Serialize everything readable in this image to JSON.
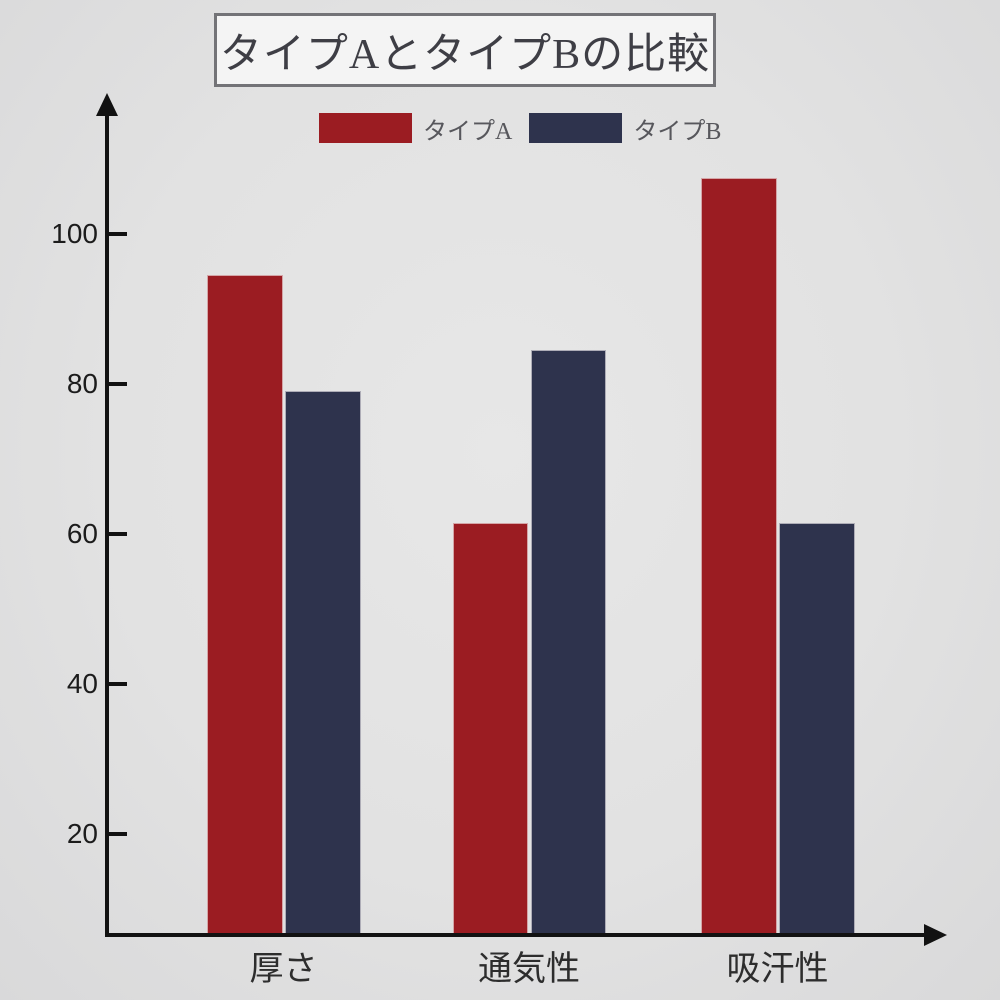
{
  "title": {
    "text": "タイプAとタイプBの比較"
  },
  "legend": {
    "items": [
      {
        "label": "タイプA",
        "color": "#9b1c22"
      },
      {
        "label": "タイプB",
        "color": "#2e334d"
      }
    ]
  },
  "chart_data": {
    "type": "bar",
    "title": "タイプAとタイプBの比較",
    "categories": [
      "厚さ",
      "通気性",
      "吸汗性"
    ],
    "series": [
      {
        "name": "タイプA",
        "color": "#9b1c22",
        "values": [
          94.5,
          61.5,
          107.5
        ]
      },
      {
        "name": "タイプB",
        "color": "#2e334d",
        "values": [
          79,
          84.5,
          61.5
        ]
      }
    ],
    "yticks": [
      20,
      40,
      60,
      80,
      100
    ],
    "ylim": [
      6.5,
      117
    ],
    "xlabel": "",
    "ylabel": "",
    "grid": false,
    "legend_position": "top",
    "axis_arrows": true
  },
  "colors": {
    "background": "#e2e2e2",
    "axis": "#121212",
    "title_box_bg": "#f4f4f4",
    "title_box_border": "#737377",
    "tick_label": "#1c1c1c",
    "category_label": "#2d2d2d",
    "legend_label": "#57575c",
    "bar_edge_highlight": "#f0eded"
  }
}
